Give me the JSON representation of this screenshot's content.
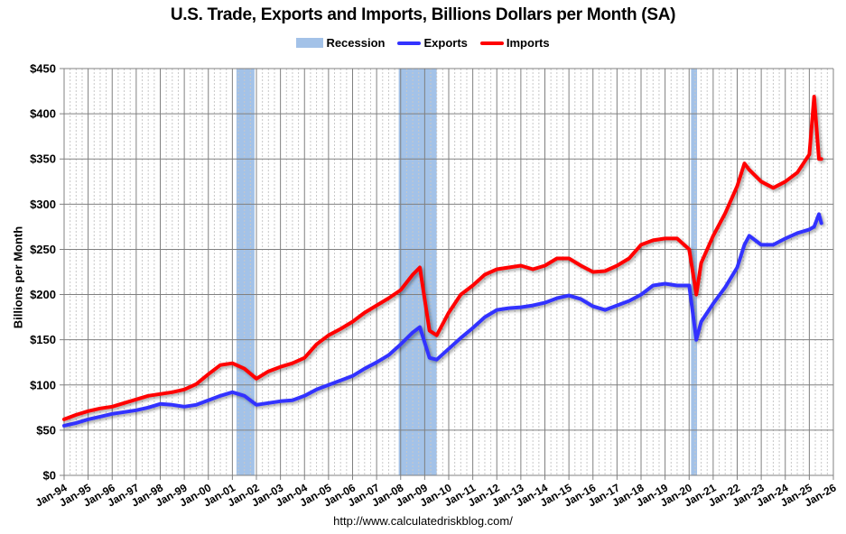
{
  "title": "U.S. Trade, Exports and Imports, Billions Dollars per Month (SA)",
  "legend": {
    "recession": "Recession",
    "exports": "Exports",
    "imports": "Imports"
  },
  "source": "http://www.calculatedriskblog.com/",
  "colors": {
    "recession": "#a3c2e8",
    "exports": "#3333ff",
    "imports": "#ff0000",
    "grid_major": "#808080",
    "grid_minor": "#c8c8c8"
  },
  "chart_data": {
    "type": "line",
    "title": "U.S. Trade, Exports and Imports, Billions Dollars per Month (SA)",
    "xlabel": "",
    "ylabel": "Billions per Month",
    "ylim": [
      0,
      450
    ],
    "yticks": [
      "$0",
      "$50",
      "$100",
      "$150",
      "$200",
      "$250",
      "$300",
      "$350",
      "$400",
      "$450"
    ],
    "xticks": [
      "Jan-94",
      "Jan-95",
      "Jan-96",
      "Jan-97",
      "Jan-98",
      "Jan-99",
      "Jan-00",
      "Jan-01",
      "Jan-02",
      "Jan-03",
      "Jan-04",
      "Jan-05",
      "Jan-06",
      "Jan-07",
      "Jan-08",
      "Jan-09",
      "Jan-10",
      "Jan-11",
      "Jan-12",
      "Jan-13",
      "Jan-14",
      "Jan-15",
      "Jan-16",
      "Jan-17",
      "Jan-18",
      "Jan-19",
      "Jan-20",
      "Jan-21",
      "Jan-22",
      "Jan-23",
      "Jan-24",
      "Jan-25",
      "Jan-26"
    ],
    "xrange": [
      1994.0,
      2026.0
    ],
    "grid": true,
    "legend_position": "top",
    "recessions": [
      {
        "start": 2001.17,
        "end": 2001.92
      },
      {
        "start": 2007.92,
        "end": 2009.5
      },
      {
        "start": 2020.08,
        "end": 2020.33
      }
    ],
    "x": [
      1994.0,
      1994.5,
      1995.0,
      1995.5,
      1996.0,
      1996.5,
      1997.0,
      1997.5,
      1998.0,
      1998.5,
      1999.0,
      1999.5,
      2000.0,
      2000.5,
      2001.0,
      2001.5,
      2002.0,
      2002.5,
      2003.0,
      2003.5,
      2004.0,
      2004.5,
      2005.0,
      2005.5,
      2006.0,
      2006.5,
      2007.0,
      2007.5,
      2008.0,
      2008.5,
      2008.8,
      2009.2,
      2009.5,
      2010.0,
      2010.5,
      2011.0,
      2011.5,
      2012.0,
      2012.5,
      2013.0,
      2013.5,
      2014.0,
      2014.5,
      2015.0,
      2015.5,
      2016.0,
      2016.5,
      2017.0,
      2017.5,
      2018.0,
      2018.5,
      2019.0,
      2019.5,
      2020.0,
      2020.3,
      2020.5,
      2021.0,
      2021.5,
      2022.0,
      2022.3,
      2022.5,
      2023.0,
      2023.5,
      2024.0,
      2024.5,
      2025.0,
      2025.2,
      2025.4,
      2025.5
    ],
    "series": [
      {
        "name": "Exports",
        "values": [
          55,
          58,
          62,
          65,
          68,
          70,
          72,
          75,
          79,
          78,
          76,
          78,
          83,
          88,
          92,
          88,
          78,
          80,
          82,
          83,
          88,
          95,
          100,
          105,
          110,
          118,
          125,
          133,
          145,
          158,
          164,
          130,
          128,
          140,
          152,
          163,
          175,
          183,
          185,
          186,
          188,
          191,
          196,
          199,
          195,
          187,
          183,
          188,
          193,
          200,
          210,
          212,
          210,
          210,
          150,
          170,
          190,
          208,
          230,
          255,
          265,
          255,
          255,
          262,
          268,
          272,
          275,
          289,
          279
        ]
      },
      {
        "name": "Imports",
        "values": [
          62,
          67,
          71,
          74,
          76,
          80,
          84,
          88,
          90,
          92,
          95,
          101,
          112,
          122,
          124,
          118,
          107,
          115,
          120,
          124,
          130,
          145,
          155,
          162,
          170,
          180,
          188,
          196,
          205,
          222,
          230,
          160,
          155,
          180,
          200,
          210,
          222,
          228,
          230,
          232,
          228,
          232,
          240,
          240,
          232,
          225,
          226,
          232,
          240,
          255,
          260,
          262,
          262,
          250,
          200,
          235,
          265,
          290,
          320,
          345,
          338,
          325,
          318,
          325,
          335,
          355,
          419,
          350,
          350
        ]
      }
    ]
  }
}
